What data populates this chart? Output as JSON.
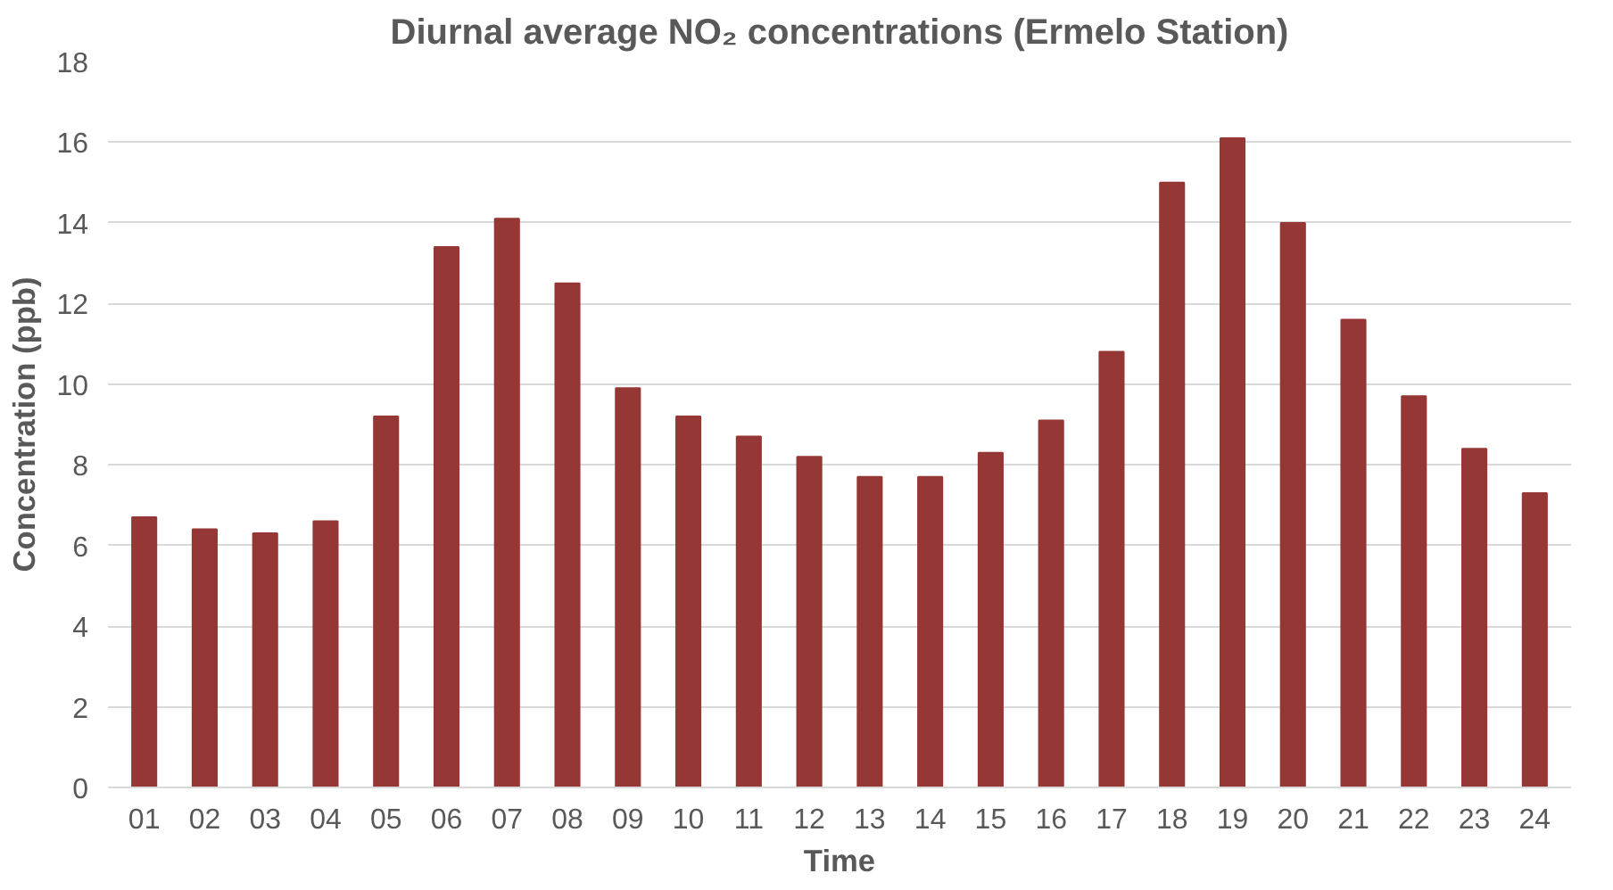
{
  "chart_data": {
    "type": "bar",
    "title": "Diurnal average NO₂ concentrations (Ermelo Station)",
    "xlabel": "Time",
    "ylabel": "Concentration (ppb)",
    "categories": [
      "01",
      "02",
      "03",
      "04",
      "05",
      "06",
      "07",
      "08",
      "09",
      "10",
      "11",
      "12",
      "13",
      "14",
      "15",
      "16",
      "17",
      "18",
      "19",
      "20",
      "21",
      "22",
      "23",
      "24"
    ],
    "values": [
      6.7,
      6.4,
      6.3,
      6.6,
      9.2,
      13.4,
      14.1,
      12.5,
      9.9,
      9.2,
      8.7,
      8.2,
      7.7,
      7.7,
      8.3,
      9.1,
      10.8,
      15.0,
      16.1,
      14.0,
      11.6,
      9.7,
      8.4,
      7.3
    ],
    "color": "#953735",
    "ylim": [
      0,
      18
    ],
    "yticks": [
      0,
      2,
      4,
      6,
      8,
      10,
      12,
      14,
      16,
      18
    ],
    "grid": "y"
  }
}
